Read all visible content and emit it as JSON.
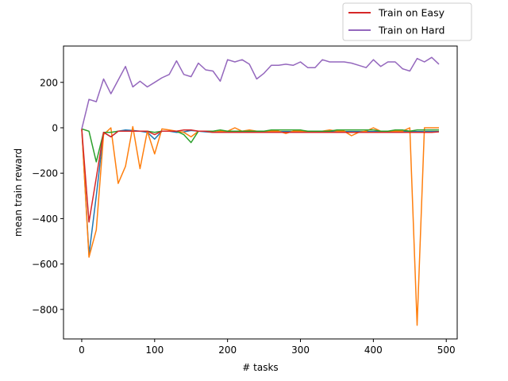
{
  "chart_data": {
    "type": "line",
    "title": "",
    "xlabel": "# tasks",
    "ylabel": "mean train reward",
    "xlim": [
      -25,
      515
    ],
    "ylim": [
      -930,
      360
    ],
    "xticks": [
      0,
      100,
      200,
      300,
      400,
      500
    ],
    "xtick_labels": [
      "0",
      "100",
      "200",
      "300",
      "400",
      "500"
    ],
    "yticks": [
      200,
      0,
      -200,
      -400,
      -600,
      -800
    ],
    "ytick_labels": [
      "200",
      "0",
      "−200",
      "−400",
      "−600",
      "−800"
    ],
    "grid": false,
    "legend_position": "outside top-right",
    "legend": [
      {
        "label": "Train on Easy",
        "color": "#d62728"
      },
      {
        "label": "Train on Hard",
        "color": "#9467bd"
      }
    ],
    "x": [
      0,
      10,
      20,
      30,
      40,
      50,
      60,
      70,
      80,
      90,
      100,
      110,
      120,
      130,
      140,
      150,
      160,
      170,
      180,
      190,
      200,
      210,
      220,
      230,
      240,
      250,
      260,
      270,
      280,
      290,
      300,
      310,
      320,
      330,
      340,
      350,
      360,
      370,
      380,
      390,
      400,
      410,
      420,
      430,
      440,
      450,
      460,
      470,
      480,
      490
    ],
    "series": [
      {
        "color": "#1f77b4",
        "values": [
          -5,
          -560,
          -300,
          -20,
          -40,
          -15,
          -10,
          -12,
          -15,
          -20,
          -50,
          -15,
          -15,
          -20,
          -18,
          -12,
          -15,
          -18,
          -20,
          -18,
          -18,
          -18,
          -20,
          -18,
          -17,
          -17,
          -18,
          -17,
          -17,
          -17,
          -18,
          -18,
          -17,
          -17,
          -17,
          -17,
          -17,
          -17,
          -17,
          -17,
          -17,
          -17,
          -17,
          -17,
          -17,
          -17,
          -17,
          -17,
          -17,
          -17
        ]
      },
      {
        "color": "#ff7f0e",
        "values": [
          -5,
          -570,
          -450,
          -30,
          0,
          -245,
          -170,
          5,
          -180,
          -15,
          -115,
          -5,
          -10,
          -15,
          -20,
          -40,
          -15,
          -15,
          -20,
          -15,
          -15,
          0,
          -15,
          -10,
          -15,
          -15,
          -15,
          -15,
          -25,
          -15,
          -15,
          -15,
          -15,
          -15,
          -10,
          -15,
          -15,
          -35,
          -20,
          -15,
          0,
          -15,
          -15,
          -15,
          -15,
          0,
          -870,
          0,
          0,
          0
        ]
      },
      {
        "color": "#2ca02c",
        "values": [
          -5,
          -15,
          -150,
          -20,
          -20,
          -15,
          -15,
          -15,
          -15,
          -15,
          -20,
          -15,
          -15,
          -15,
          -30,
          -65,
          -15,
          -15,
          -15,
          -10,
          -15,
          -15,
          -15,
          -15,
          -15,
          -15,
          -10,
          -10,
          -10,
          -10,
          -10,
          -15,
          -15,
          -15,
          -15,
          -10,
          -10,
          -10,
          -10,
          -10,
          -10,
          -15,
          -15,
          -10,
          -10,
          -15,
          -10,
          -10,
          -10,
          -10
        ]
      },
      {
        "name": "Train on Easy",
        "color": "#d62728",
        "values": [
          -5,
          -415,
          -220,
          -20,
          -40,
          -15,
          -15,
          -15,
          -15,
          -15,
          -30,
          -15,
          -15,
          -15,
          -10,
          -10,
          -15,
          -15,
          -20,
          -20,
          -20,
          -20,
          -20,
          -20,
          -20,
          -20,
          -20,
          -20,
          -20,
          -20,
          -20,
          -20,
          -20,
          -20,
          -20,
          -20,
          -20,
          -20,
          -20,
          -20,
          -20,
          -20,
          -20,
          -20,
          -20,
          -20,
          -20,
          -20,
          -20,
          -18
        ]
      },
      {
        "name": "Train on Hard",
        "color": "#9467bd",
        "values": [
          -5,
          125,
          115,
          215,
          150,
          210,
          270,
          180,
          205,
          180,
          200,
          220,
          235,
          295,
          235,
          225,
          285,
          255,
          250,
          205,
          300,
          290,
          300,
          280,
          215,
          240,
          275,
          275,
          280,
          275,
          290,
          265,
          265,
          300,
          290,
          290,
          290,
          285,
          275,
          265,
          300,
          270,
          290,
          290,
          260,
          250,
          305,
          290,
          310,
          280
        ]
      }
    ]
  }
}
